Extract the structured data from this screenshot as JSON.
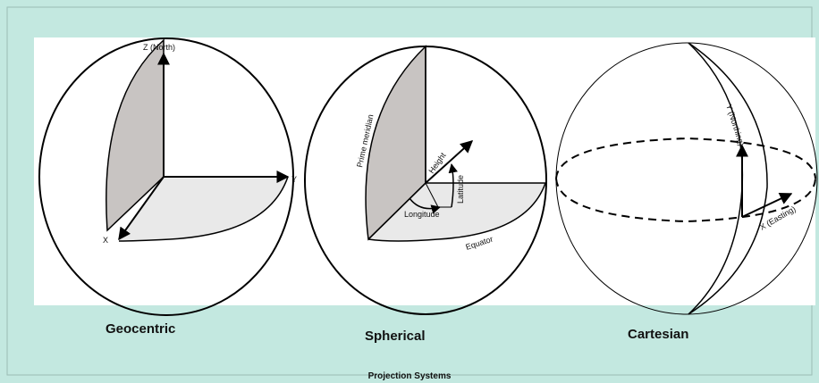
{
  "title": "Projection Systems",
  "panels": [
    {
      "caption": "Geocentric",
      "labels": [
        "Z (North)",
        "Y",
        "X"
      ]
    },
    {
      "caption": "Spherical",
      "labels": [
        "Prime meridian",
        "Height",
        "Latitude",
        "Longitude",
        "Equator"
      ]
    },
    {
      "caption": "Cartesian",
      "labels": [
        "Y (Northing)",
        "X (Easting)"
      ]
    }
  ]
}
